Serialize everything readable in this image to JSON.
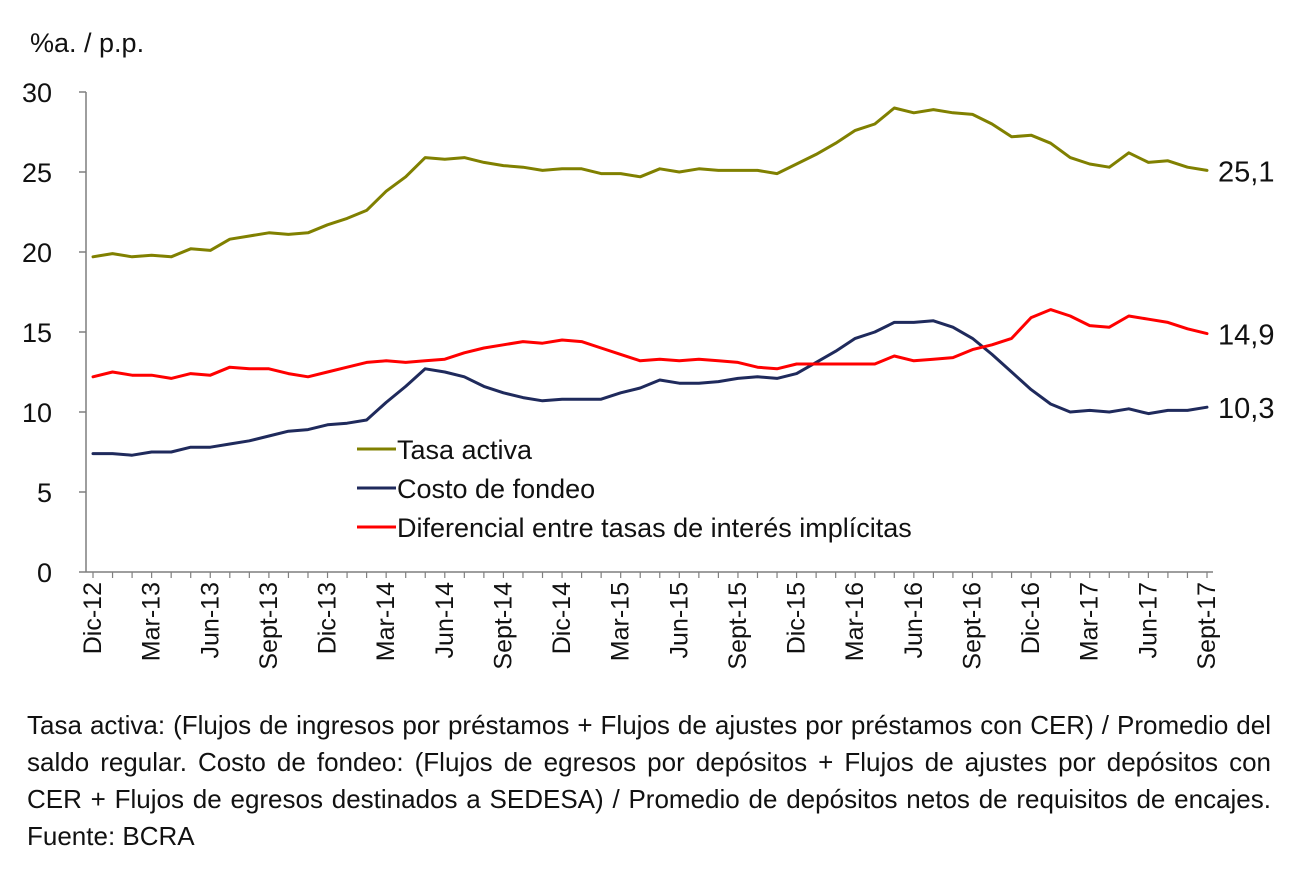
{
  "chart_data": {
    "type": "line",
    "title": "",
    "ylabel": "%a. / p.p.",
    "xlabel": "",
    "ylim": [
      0,
      30
    ],
    "yticks": [
      "0",
      "5",
      "10",
      "15",
      "20",
      "25",
      "30"
    ],
    "x_tick_labels": [
      "Dic-12",
      "Mar-13",
      "Jun-13",
      "Sept-13",
      "Dic-13",
      "Mar-14",
      "Jun-14",
      "Sept-14",
      "Dic-14",
      "Mar-15",
      "Jun-15",
      "Sept-15",
      "Dic-15",
      "Mar-16",
      "Jun-16",
      "Sept-16",
      "Dic-16",
      "Mar-17",
      "Jun-17",
      "Sept-17"
    ],
    "x_months": [
      "Dic-12",
      "Ene-13",
      "Feb-13",
      "Mar-13",
      "Abr-13",
      "May-13",
      "Jun-13",
      "Jul-13",
      "Ago-13",
      "Sept-13",
      "Oct-13",
      "Nov-13",
      "Dic-13",
      "Ene-14",
      "Feb-14",
      "Mar-14",
      "Abr-14",
      "May-14",
      "Jun-14",
      "Jul-14",
      "Ago-14",
      "Sept-14",
      "Oct-14",
      "Nov-14",
      "Dic-14",
      "Ene-15",
      "Feb-15",
      "Mar-15",
      "Abr-15",
      "May-15",
      "Jun-15",
      "Jul-15",
      "Ago-15",
      "Sept-15",
      "Oct-15",
      "Nov-15",
      "Dic-15",
      "Ene-16",
      "Feb-16",
      "Mar-16",
      "Abr-16",
      "May-16",
      "Jun-16",
      "Jul-16",
      "Ago-16",
      "Sept-16",
      "Oct-16",
      "Nov-16",
      "Dic-16",
      "Ene-17",
      "Feb-17",
      "Mar-17",
      "Abr-17",
      "May-17",
      "Jun-17",
      "Jul-17",
      "Ago-17",
      "Sept-17"
    ],
    "series": [
      {
        "name": "Tasa activa",
        "color": "#808000",
        "end_label": "25,1",
        "values": [
          19.7,
          19.9,
          19.7,
          19.8,
          19.7,
          20.2,
          20.1,
          20.8,
          21.0,
          21.2,
          21.1,
          21.2,
          21.7,
          22.1,
          22.6,
          23.8,
          24.7,
          25.9,
          25.8,
          25.9,
          25.6,
          25.4,
          25.3,
          25.1,
          25.2,
          25.2,
          24.9,
          24.9,
          24.7,
          25.2,
          25.0,
          25.2,
          25.1,
          25.1,
          25.1,
          24.9,
          25.5,
          26.1,
          26.8,
          27.6,
          28.0,
          29.0,
          28.7,
          28.9,
          28.7,
          28.6,
          28.0,
          27.2,
          27.3,
          26.8,
          25.9,
          25.5,
          25.3,
          26.2,
          25.6,
          25.7,
          25.3,
          25.1
        ]
      },
      {
        "name": "Costo de fondeo",
        "color": "#1F2A5C",
        "end_label": "10,3",
        "values": [
          7.4,
          7.4,
          7.3,
          7.5,
          7.5,
          7.8,
          7.8,
          8.0,
          8.2,
          8.5,
          8.8,
          8.9,
          9.2,
          9.3,
          9.5,
          10.6,
          11.6,
          12.7,
          12.5,
          12.2,
          11.6,
          11.2,
          10.9,
          10.7,
          10.8,
          10.8,
          10.8,
          11.2,
          11.5,
          12.0,
          11.8,
          11.8,
          11.9,
          12.1,
          12.2,
          12.1,
          12.4,
          13.1,
          13.8,
          14.6,
          15.0,
          15.6,
          15.6,
          15.7,
          15.3,
          14.6,
          13.6,
          12.5,
          11.4,
          10.5,
          10.0,
          10.1,
          10.0,
          10.2,
          9.9,
          10.1,
          10.1,
          10.3
        ]
      },
      {
        "name": "Diferencial entre tasas de interés implícitas",
        "color": "#FF0000",
        "end_label": "14,9",
        "values": [
          12.2,
          12.5,
          12.3,
          12.3,
          12.1,
          12.4,
          12.3,
          12.8,
          12.7,
          12.7,
          12.4,
          12.2,
          12.5,
          12.8,
          13.1,
          13.2,
          13.1,
          13.2,
          13.3,
          13.7,
          14.0,
          14.2,
          14.4,
          14.3,
          14.5,
          14.4,
          14.0,
          13.6,
          13.2,
          13.3,
          13.2,
          13.3,
          13.2,
          13.1,
          12.8,
          12.7,
          13.0,
          13.0,
          13.0,
          13.0,
          13.0,
          13.5,
          13.2,
          13.3,
          13.4,
          13.9,
          14.2,
          14.6,
          15.9,
          16.4,
          16.0,
          15.4,
          15.3,
          16.0,
          15.8,
          15.6,
          15.2,
          14.9
        ]
      }
    ]
  },
  "footnote": "Tasa activa: (Flujos de ingresos por préstamos + Flujos de ajustes por préstamos con CER) / Promedio del saldo regular. Costo de fondeo: (Flujos de egresos por depósitos + Flujos de ajustes por depósitos con CER + Flujos de egresos destinados a SEDESA) / Promedio de depósitos netos de requisitos de encajes. Fuente: BCRA"
}
